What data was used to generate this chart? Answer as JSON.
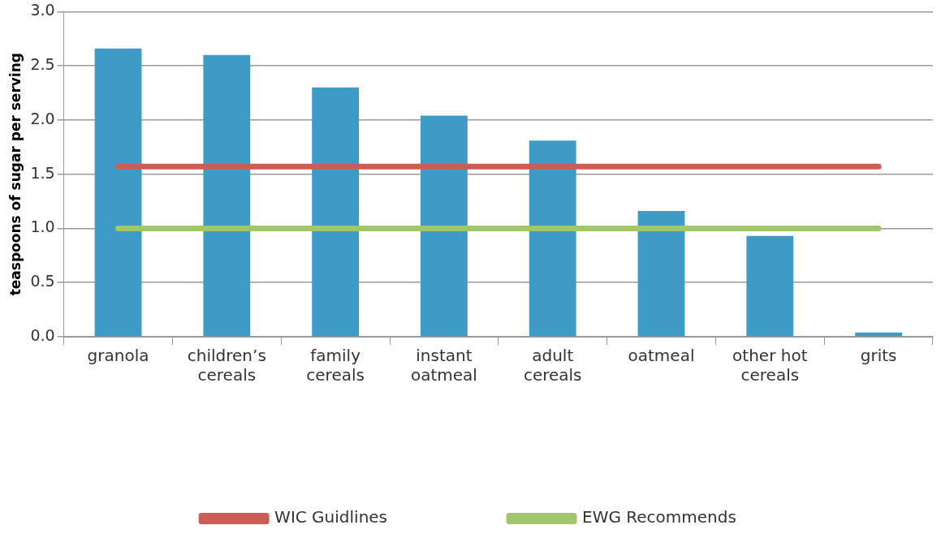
{
  "chart_data": {
    "type": "bar",
    "ylabel": "teaspoons of sugar per serving",
    "categories": [
      "granola",
      "children’s cereals",
      "family cereals",
      "instant oatmeal",
      "adult cereals",
      "oatmeal",
      "other hot cereals",
      "grits"
    ],
    "series": [
      {
        "color": "#3e9bc5",
        "values": [
          2.66,
          2.6,
          2.3,
          2.04,
          1.81,
          1.16,
          0.93,
          0.04
        ]
      },
      {
        "type": "line",
        "name": "WIC Guidlines",
        "color": "#cd5c55",
        "values": [
          1.57,
          1.57,
          1.57,
          1.57,
          1.57,
          1.57,
          1.57,
          1.57
        ]
      },
      {
        "type": "line",
        "name": "EWG Recommends",
        "color": "#a4c66a",
        "values": [
          1.0,
          1.0,
          1.0,
          1.0,
          1.0,
          1.0,
          1.0,
          1.0
        ]
      }
    ],
    "ylim": [
      0,
      3
    ],
    "yticks": [
      {
        "value": 0,
        "label": "0.0"
      },
      {
        "value": 0.5,
        "label": "0.5"
      },
      {
        "value": 1,
        "label": "1.0"
      },
      {
        "value": 1.5,
        "label": "1.5"
      },
      {
        "value": 2,
        "label": "2.0"
      },
      {
        "value": 2.5,
        "label": "2.5"
      },
      {
        "value": 3,
        "label": "3.0"
      }
    ],
    "grid": "y",
    "legend": "bottom",
    "marker": "none"
  }
}
